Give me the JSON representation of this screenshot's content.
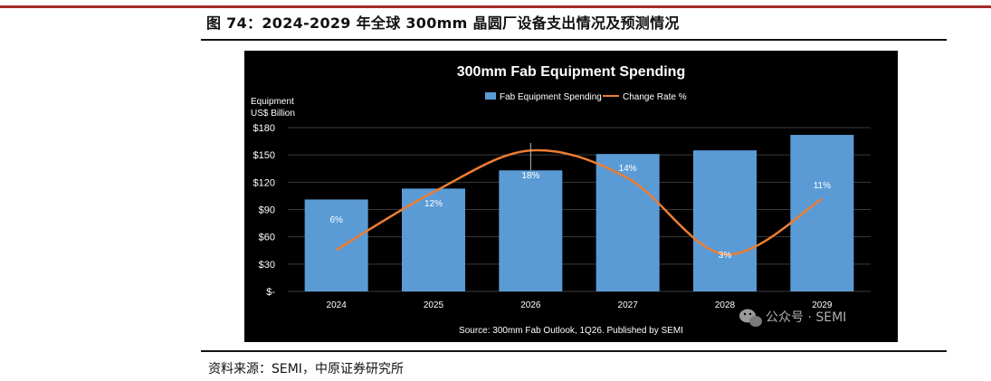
{
  "figure": {
    "title": "图 74：2024-2029 年全球 300mm 晶圆厂设备支出情况及预测情况",
    "source_note": "资料来源：SEMI，中原证券研究所"
  },
  "watermark": {
    "text": "公众号 · SEMI",
    "icon": "wechat-icon"
  },
  "colors": {
    "panel_bg": "#000000",
    "bar": "#5b9bd5",
    "line": "#ed7d31",
    "text": "#ffffff",
    "grid": "#3a3a3a",
    "top_rule": "#a52a2a"
  },
  "chart_data": {
    "type": "bar",
    "title": "300mm Fab Equipment Spending",
    "ylabel_line1": "Equipment",
    "ylabel_line2": "US$ Billion",
    "source": "Source: 300mm Fab Outlook, 1Q26. Published by SEMI",
    "legend_position": "top",
    "grid": true,
    "categories": [
      "2024",
      "2025",
      "2026",
      "2027",
      "2028",
      "2029"
    ],
    "ylim": [
      0,
      180
    ],
    "yticks": [
      0,
      30,
      60,
      90,
      120,
      150,
      180
    ],
    "ytick_labels": [
      "$-",
      "$30",
      "$60",
      "$90",
      "$120",
      "$150",
      "$180"
    ],
    "series": [
      {
        "name": "Fab Equipment Spending",
        "type": "bar",
        "values": [
          101,
          113,
          133,
          151,
          155,
          172
        ]
      },
      {
        "name": "Change Rate %",
        "type": "line",
        "values": [
          6,
          12,
          18,
          14,
          3,
          11
        ],
        "labels": [
          "6%",
          "12%",
          "18%",
          "14%",
          "3%",
          "11%"
        ]
      }
    ]
  }
}
